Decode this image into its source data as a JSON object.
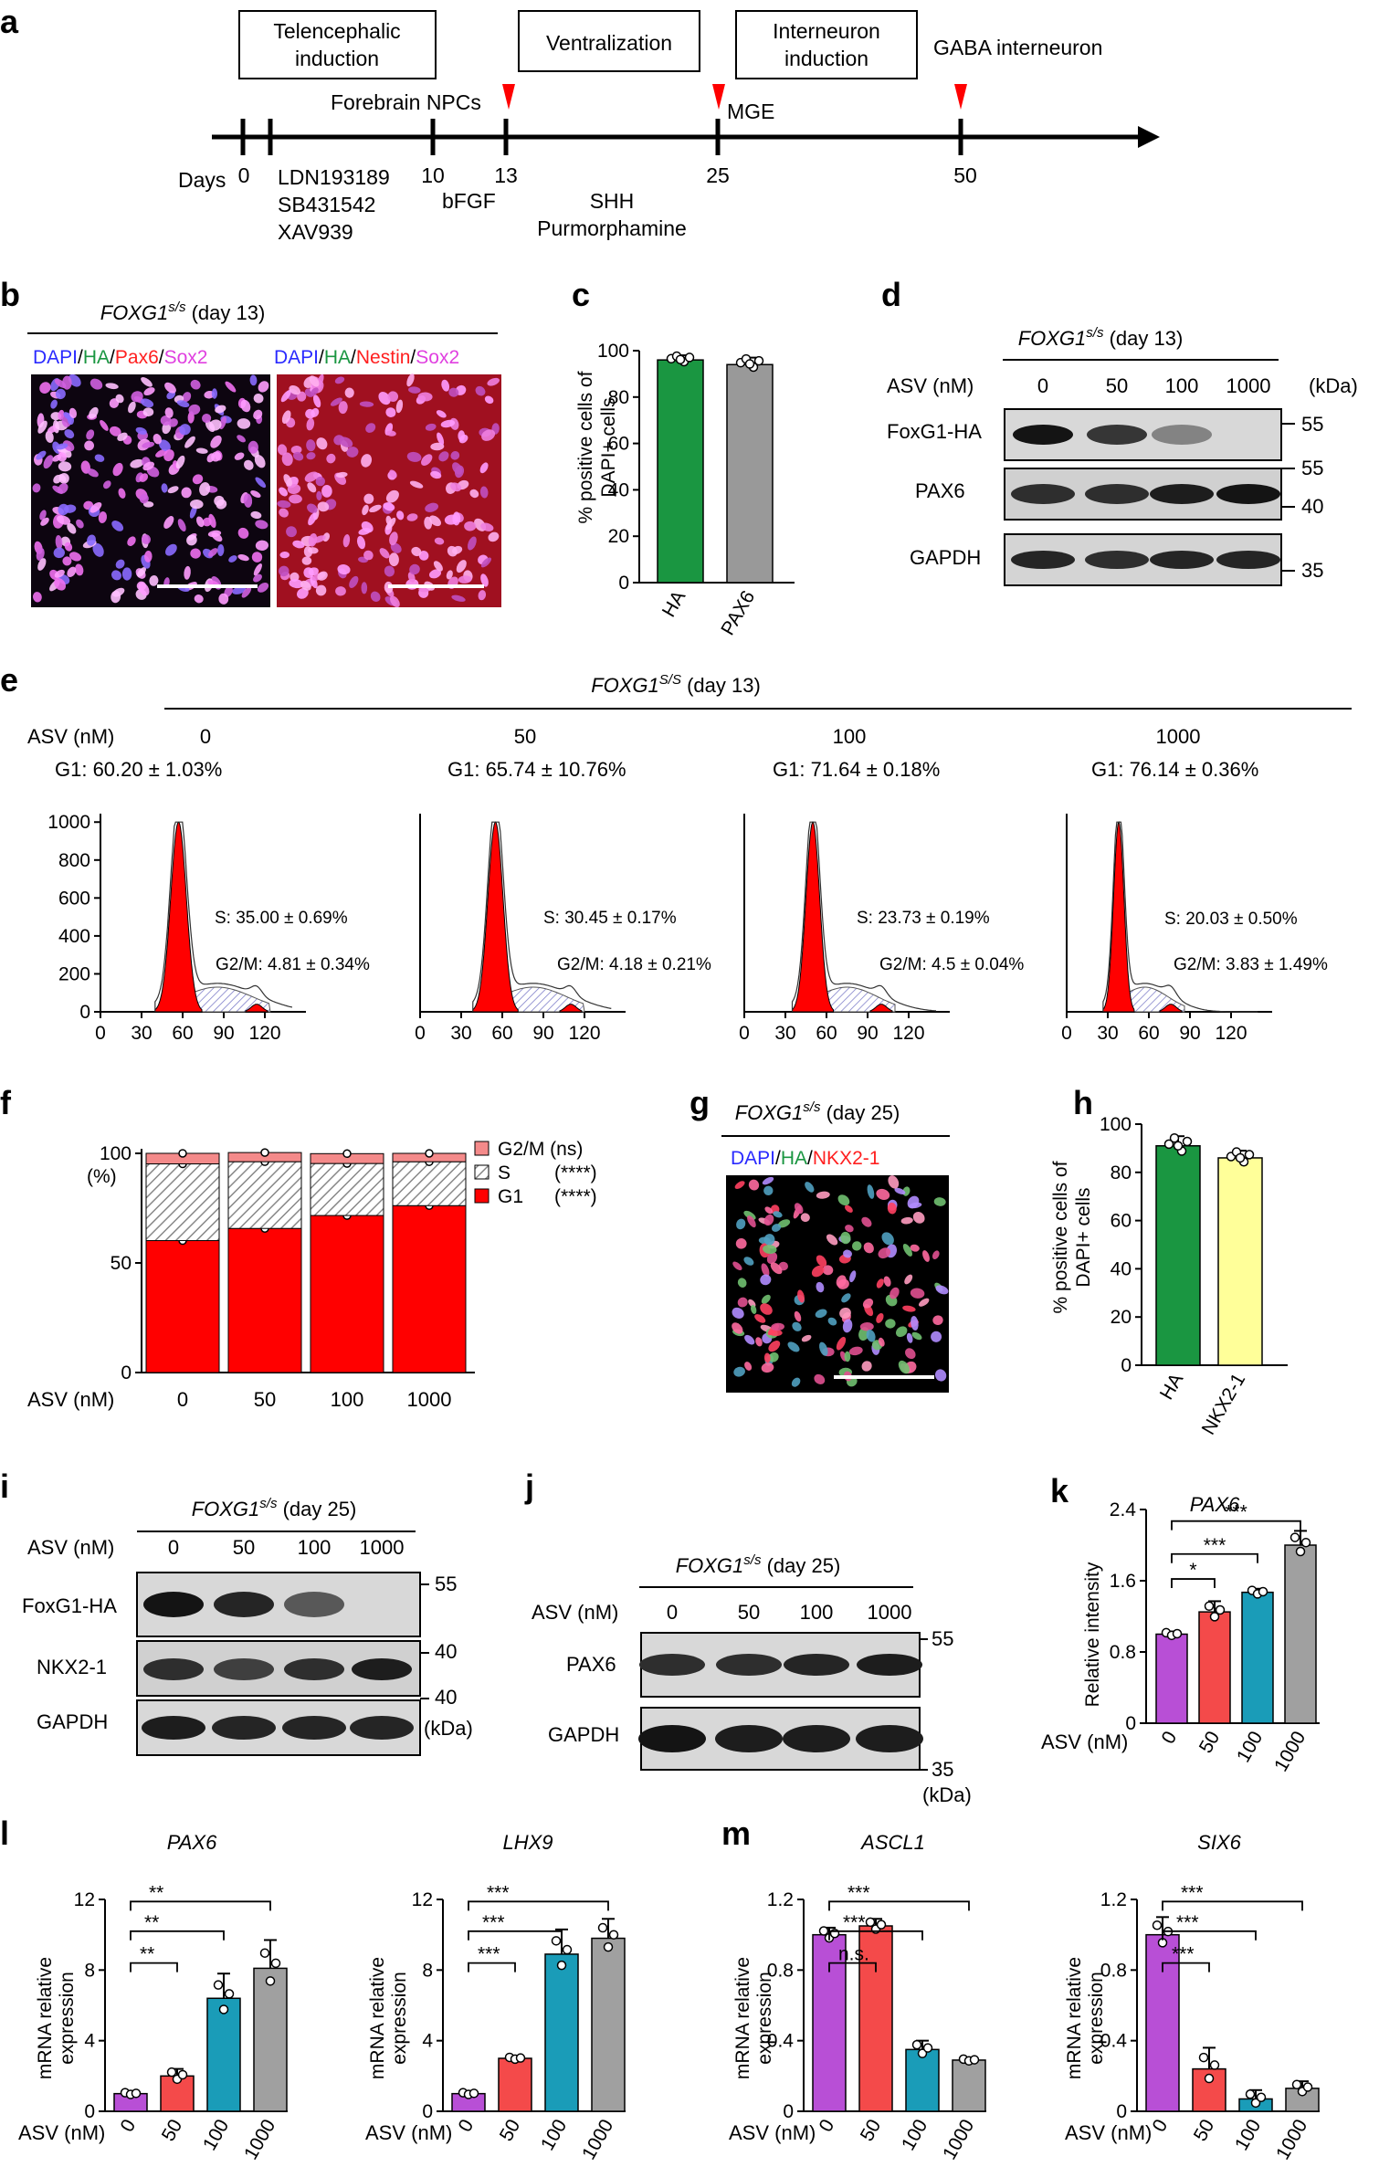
{
  "panels": {
    "a": "a",
    "b": "b",
    "c": "c",
    "d": "d",
    "e": "e",
    "f": "f",
    "g": "g",
    "h": "h",
    "i": "i",
    "j": "j",
    "k": "k",
    "l": "l",
    "m": "m"
  },
  "timeline": {
    "stage1": "Telencephalic",
    "stage1b": "induction",
    "stage2": "Ventralization",
    "stage3": "Interneuron",
    "stage3b": "induction",
    "stage4": "GABA interneuron",
    "npcs": "Forebrain NPCs",
    "mge": "MGE",
    "days_label": "Days",
    "day0": "0",
    "day10": "10",
    "day13": "13",
    "day25": "25",
    "day50": "50",
    "drug1": "LDN193189",
    "drug2": "SB431542",
    "drug3": "XAV939",
    "drug4": "bFGF",
    "drug5": "SHH",
    "drug6": "Purmorphamine"
  },
  "b": {
    "title_gene": "FOXG1",
    "title_sup": "s/s",
    "title_rest": " (day 13)",
    "left_dapi": "DAPI",
    "left_ha": "HA",
    "left_pax6": "Pax6",
    "left_sox2": "Sox2",
    "right_dapi": "DAPI",
    "right_ha": "HA",
    "right_nestin": "Nestin",
    "right_sox2": "Sox2",
    "slash": "/"
  },
  "c": {
    "ylabel1": "% positive cells of",
    "ylabel2": "DAPI+ cells",
    "yticks": [
      "0",
      "20",
      "40",
      "60",
      "80",
      "100"
    ],
    "cat1": "HA",
    "cat2": "PAX6"
  },
  "d": {
    "title_gene": "FOXG1",
    "title_sup": "s/s",
    "title_rest": " (day 13)",
    "asv": "ASV (nM)",
    "doses": [
      "0",
      "50",
      "100",
      "1000"
    ],
    "kda": "(kDa)",
    "row1": "FoxG1-HA",
    "row2": "PAX6",
    "row3": "GAPDH",
    "mw": [
      "55",
      "55",
      "40",
      "35"
    ]
  },
  "e": {
    "title_gene": "FOXG1",
    "title_sup": "S/S",
    "title_rest": " (day 13)",
    "asv": "ASV (nM)",
    "doses": [
      "0",
      "50",
      "100",
      "1000"
    ],
    "g1": [
      "G1: 60.20 ± 1.03%",
      "G1: 65.74 ± 10.76%",
      "G1: 71.64 ± 0.18%",
      "G1: 76.14 ± 0.36%"
    ],
    "s": [
      "S: 35.00 ± 0.69%",
      "S: 30.45 ± 0.17%",
      "S: 23.73 ± 0.19%",
      "S: 20.03 ± 0.50%"
    ],
    "g2m": [
      "G2/M: 4.81 ± 0.34%",
      "G2/M: 4.18 ± 0.21%",
      "G2/M: 4.5 ± 0.04%",
      "G2/M: 3.83 ± 1.49%"
    ],
    "yticks": [
      "0",
      "200",
      "400",
      "600",
      "800",
      "1000"
    ],
    "xticks": [
      "0",
      "30",
      "60",
      "90",
      "120"
    ]
  },
  "f": {
    "legend_g2m": "G2/M (ns)",
    "legend_s": "S",
    "legend_s_sig": "(****)",
    "legend_g1": "G1",
    "legend_g1_sig": "(****)",
    "ylabel_pct": "(%)",
    "yticks": [
      "0",
      "50",
      "100"
    ],
    "asv": "ASV (nM)",
    "doses": [
      "0",
      "50",
      "100",
      "1000"
    ]
  },
  "g": {
    "title_gene": "FOXG1",
    "title_sup": "s/s",
    "title_rest": " (day 25)",
    "dapi": "DAPI",
    "ha": "HA",
    "nkx": "NKX2-1",
    "slash": "/"
  },
  "h": {
    "ylabel1": "% positive cells of",
    "ylabel2": "DAPI+ cells",
    "yticks": [
      "0",
      "20",
      "40",
      "60",
      "80",
      "100"
    ],
    "cat1": "HA",
    "cat2": "NKX2-1"
  },
  "i": {
    "title_gene": "FOXG1",
    "title_sup": "s/s",
    "title_rest": " (day 25)",
    "asv": "ASV (nM)",
    "doses": [
      "0",
      "50",
      "100",
      "1000"
    ],
    "row1": "FoxG1-HA",
    "row2": "NKX2-1",
    "row3": "GAPDH",
    "mw": [
      "55",
      "40",
      "40"
    ],
    "kda": "(kDa)"
  },
  "j": {
    "title_gene": "FOXG1",
    "title_sup": "s/s",
    "title_rest": " (day 25)",
    "asv": "ASV (nM)",
    "doses": [
      "0",
      "50",
      "100",
      "1000"
    ],
    "row1": "PAX6",
    "row2": "GAPDH",
    "mw": [
      "55",
      "35"
    ],
    "kda": "(kDa)"
  },
  "k": {
    "title": "PAX6",
    "ylabel": "Relative intensity",
    "yticks": [
      "0",
      "0.8",
      "1.6",
      "2.4"
    ],
    "asv": "ASV (nM)",
    "sig": [
      "*",
      "***",
      "***"
    ]
  },
  "l1": {
    "title": "PAX6",
    "yticks": [
      "0",
      "4",
      "8",
      "12"
    ],
    "sig": [
      "**",
      "**",
      "**"
    ]
  },
  "l2": {
    "title": "LHX9",
    "yticks": [
      "0",
      "4",
      "8",
      "12"
    ],
    "sig": [
      "***",
      "***",
      "***"
    ]
  },
  "m1": {
    "title": "ASCL1",
    "yticks": [
      "0",
      "0.4",
      "0.8",
      "1.2"
    ],
    "sig": [
      "n.s.",
      "***",
      "***"
    ]
  },
  "m2": {
    "title": "SIX6",
    "yticks": [
      "0",
      "0.4",
      "0.8",
      "1.2"
    ],
    "sig": [
      "***",
      "***",
      "***"
    ]
  },
  "bottom": {
    "ylabel1": "mRNA relative",
    "ylabel2": "expression",
    "asv": "ASV (nM)",
    "doses": [
      "0",
      "50",
      "100",
      "1000"
    ]
  },
  "colors": {
    "green": "#1a9641",
    "gray": "#999999",
    "yellow": "#ffff99",
    "red": "#ff0000",
    "purple": "#b84fd6",
    "coral": "#f44a4a",
    "teal": "#1a9cb8",
    "lgray": "#a0a0a0",
    "arrow": "#ff0000"
  },
  "chart_data": [
    {
      "id": "c",
      "type": "bar",
      "categories": [
        "HA",
        "PAX6"
      ],
      "values": [
        96,
        94
      ],
      "errors": [
        2,
        3
      ],
      "ylabel": "% positive cells of DAPI+ cells",
      "ylim": [
        0,
        100
      ]
    },
    {
      "id": "f",
      "type": "bar",
      "stacked": true,
      "categories": [
        "0",
        "50",
        "100",
        "1000"
      ],
      "xlabel": "ASV (nM)",
      "ylabel": "(%)",
      "ylim": [
        0,
        100
      ],
      "series": [
        {
          "name": "G1",
          "values": [
            60.2,
            65.74,
            71.64,
            76.14
          ]
        },
        {
          "name": "S",
          "values": [
            35.0,
            30.45,
            23.73,
            20.03
          ]
        },
        {
          "name": "G2/M",
          "values": [
            4.81,
            4.18,
            4.5,
            3.83
          ]
        }
      ]
    },
    {
      "id": "h",
      "type": "bar",
      "categories": [
        "HA",
        "NKX2-1"
      ],
      "values": [
        91,
        86
      ],
      "errors": [
        4,
        3
      ],
      "ylabel": "% positive cells of DAPI+ cells",
      "ylim": [
        0,
        100
      ]
    },
    {
      "id": "k",
      "type": "bar",
      "title": "PAX6",
      "categories": [
        "0",
        "50",
        "100",
        "1000"
      ],
      "values": [
        1.0,
        1.25,
        1.47,
        2.0
      ],
      "errors": [
        0.03,
        0.12,
        0.04,
        0.16
      ],
      "ylabel": "Relative intensity",
      "ylim": [
        0,
        2.4
      ]
    },
    {
      "id": "l1",
      "type": "bar",
      "title": "PAX6",
      "categories": [
        "0",
        "50",
        "100",
        "1000"
      ],
      "values": [
        1.0,
        2.0,
        6.4,
        8.1
      ],
      "errors": [
        0.1,
        0.4,
        1.4,
        1.6
      ],
      "ylabel": "mRNA relative expression",
      "ylim": [
        0,
        12
      ]
    },
    {
      "id": "l2",
      "type": "bar",
      "title": "LHX9",
      "categories": [
        "0",
        "50",
        "100",
        "1000"
      ],
      "values": [
        1.0,
        3.0,
        8.9,
        9.8
      ],
      "errors": [
        0.1,
        0.1,
        1.4,
        1.1
      ],
      "ylabel": "mRNA relative expression",
      "ylim": [
        0,
        12
      ]
    },
    {
      "id": "m1",
      "type": "bar",
      "title": "ASCL1",
      "categories": [
        "0",
        "50",
        "100",
        "1000"
      ],
      "values": [
        1.0,
        1.05,
        0.35,
        0.29
      ],
      "errors": [
        0.04,
        0.04,
        0.05,
        0.01
      ],
      "ylabel": "mRNA relative expression",
      "ylim": [
        0,
        1.2
      ]
    },
    {
      "id": "m2",
      "type": "bar",
      "title": "SIX6",
      "categories": [
        "0",
        "50",
        "100",
        "1000"
      ],
      "values": [
        1.0,
        0.24,
        0.07,
        0.13
      ],
      "errors": [
        0.1,
        0.12,
        0.05,
        0.04
      ],
      "ylabel": "mRNA relative expression",
      "ylim": [
        0,
        1.2
      ]
    }
  ]
}
